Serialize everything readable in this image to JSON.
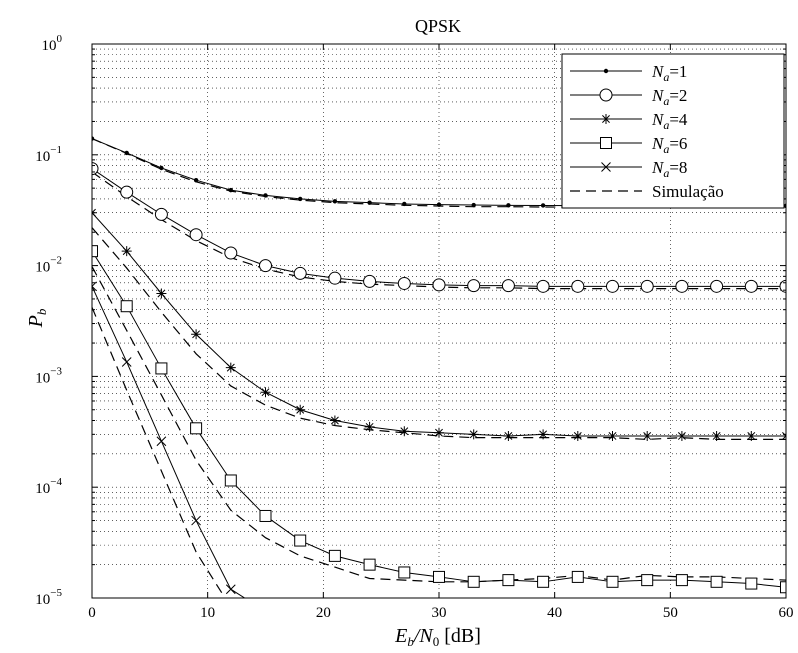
{
  "chart_data": {
    "type": "line",
    "title": "QPSK",
    "xlabel": {
      "main": "E",
      "sub1": "b",
      "slash": "/N",
      "sub2": "0",
      "unit": " [dB]"
    },
    "ylabel": {
      "main": "P",
      "sub": "b"
    },
    "xlim": [
      0,
      60
    ],
    "ylim": [
      1e-05,
      1
    ],
    "yscale": "log",
    "grid": true,
    "legend_position": "top-right",
    "x_ticks": [
      "0",
      "10",
      "20",
      "30",
      "40",
      "50",
      "60"
    ],
    "y_ticks": [
      {
        "base": "10",
        "exp": "0"
      },
      {
        "base": "10",
        "exp": "−1"
      },
      {
        "base": "10",
        "exp": "−2"
      },
      {
        "base": "10",
        "exp": "−3"
      },
      {
        "base": "10",
        "exp": "−4"
      },
      {
        "base": "10",
        "exp": "−5"
      }
    ],
    "analytic_series": [
      {
        "name_main": "N",
        "name_sub": "a",
        "name_value": "=1",
        "marker": "dot",
        "x": [
          0,
          3,
          6,
          9,
          12,
          15,
          18,
          21,
          24,
          27,
          30,
          33,
          36,
          39,
          42,
          45,
          48,
          51,
          54,
          57,
          60
        ],
        "y": [
          0.14,
          0.104,
          0.076,
          0.059,
          0.048,
          0.043,
          0.04,
          0.038,
          0.037,
          0.036,
          0.0355,
          0.0352,
          0.035,
          0.0349,
          0.0348,
          0.0347,
          0.0347,
          0.0346,
          0.0346,
          0.0346,
          0.0346
        ]
      },
      {
        "name_main": "N",
        "name_sub": "a",
        "name_value": "=2",
        "marker": "circle",
        "x": [
          0,
          3,
          6,
          9,
          12,
          15,
          18,
          21,
          24,
          27,
          30,
          33,
          36,
          39,
          42,
          45,
          48,
          51,
          54,
          57,
          60
        ],
        "y": [
          0.075,
          0.046,
          0.029,
          0.019,
          0.013,
          0.01,
          0.0085,
          0.0077,
          0.0072,
          0.0069,
          0.0067,
          0.0066,
          0.0066,
          0.0065,
          0.0065,
          0.0065,
          0.0065,
          0.0065,
          0.0065,
          0.0065,
          0.0065
        ]
      },
      {
        "name_main": "N",
        "name_sub": "a",
        "name_value": "=4",
        "marker": "asterisk",
        "x": [
          0,
          3,
          6,
          9,
          12,
          15,
          18,
          21,
          24,
          27,
          30,
          33,
          36,
          39,
          42,
          45,
          48,
          51,
          54,
          57,
          60
        ],
        "y": [
          0.03,
          0.0135,
          0.0056,
          0.0024,
          0.0012,
          0.00072,
          0.0005,
          0.0004,
          0.00035,
          0.00032,
          0.00031,
          0.0003,
          0.00029,
          0.0003,
          0.00029,
          0.00029,
          0.00029,
          0.00029,
          0.00029,
          0.00029,
          0.00029
        ]
      },
      {
        "name_main": "N",
        "name_sub": "a",
        "name_value": "=6",
        "marker": "square",
        "x": [
          0,
          3,
          6,
          9,
          12,
          15,
          18,
          21,
          24,
          27,
          30,
          33,
          36,
          39,
          42,
          45,
          48,
          51,
          54,
          57,
          60
        ],
        "y": [
          0.0135,
          0.0043,
          0.00118,
          0.00034,
          0.000115,
          5.5e-05,
          3.3e-05,
          2.4e-05,
          2e-05,
          1.7e-05,
          1.55e-05,
          1.4e-05,
          1.45e-05,
          1.4e-05,
          1.55e-05,
          1.4e-05,
          1.45e-05,
          1.45e-05,
          1.4e-05,
          1.35e-05,
          1.25e-05
        ]
      },
      {
        "name_main": "N",
        "name_sub": "a",
        "name_value": "=8",
        "marker": "x",
        "x": [
          0,
          3,
          6,
          9,
          12,
          13.2
        ],
        "y": [
          0.0065,
          0.00135,
          0.00026,
          5e-05,
          1.2e-05,
          1e-05
        ]
      }
    ],
    "simulation_series": {
      "name": "Simulação",
      "curves": [
        {
          "x": [
            0,
            3,
            6,
            9,
            12,
            15,
            18,
            21,
            24,
            27,
            30,
            33,
            36,
            39,
            42,
            45,
            48,
            51,
            54,
            57,
            60
          ],
          "y": [
            0.14,
            0.103,
            0.074,
            0.057,
            0.047,
            0.042,
            0.039,
            0.037,
            0.036,
            0.035,
            0.0345,
            0.034,
            0.034,
            0.0338,
            0.0337,
            0.0337,
            0.0336,
            0.0336,
            0.0336,
            0.0336,
            0.0336
          ]
        },
        {
          "x": [
            0,
            3,
            6,
            9,
            12,
            15,
            18,
            21,
            24,
            27,
            30,
            33,
            36,
            39,
            42,
            45,
            48,
            51,
            54,
            57,
            60
          ],
          "y": [
            0.07,
            0.042,
            0.026,
            0.0168,
            0.0118,
            0.0093,
            0.0079,
            0.0072,
            0.0068,
            0.0066,
            0.0064,
            0.0063,
            0.0063,
            0.0062,
            0.0062,
            0.0062,
            0.0062,
            0.0062,
            0.0062,
            0.0062,
            0.0062
          ]
        },
        {
          "x": [
            0,
            3,
            6,
            9,
            12,
            15,
            18,
            21,
            24,
            27,
            30,
            33,
            36,
            39,
            42,
            45,
            48,
            51,
            54,
            57,
            60
          ],
          "y": [
            0.022,
            0.0095,
            0.0038,
            0.0016,
            0.00082,
            0.00055,
            0.00042,
            0.00036,
            0.00033,
            0.00031,
            0.00029,
            0.00028,
            0.00028,
            0.00028,
            0.00028,
            0.00028,
            0.00027,
            0.00028,
            0.00027,
            0.00027,
            0.00027
          ]
        },
        {
          "x": [
            0,
            3,
            6,
            9,
            12,
            15,
            18,
            21,
            24,
            27,
            30,
            33,
            36,
            39,
            42,
            45,
            48,
            51,
            54,
            57,
            60
          ],
          "y": [
            0.0098,
            0.0026,
            0.00068,
            0.000175,
            6.2e-05,
            3.5e-05,
            2.4e-05,
            1.9e-05,
            1.5e-05,
            1.45e-05,
            1.4e-05,
            1.4e-05,
            1.45e-05,
            1.5e-05,
            1.6e-05,
            1.45e-05,
            1.6e-05,
            1.55e-05,
            1.55e-05,
            1.5e-05,
            1.45e-05
          ]
        },
        {
          "x": [
            0,
            3,
            6,
            9,
            11.5
          ],
          "y": [
            0.0042,
            0.00075,
            0.00014,
            2.6e-05,
            1e-05
          ]
        }
      ]
    }
  }
}
